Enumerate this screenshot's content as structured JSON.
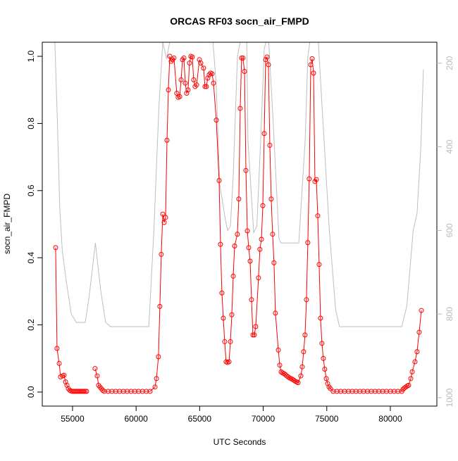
{
  "chart_data": {
    "type": "line",
    "title": "ORCAS RF03 socn_air_FMPD",
    "x_label": "UTC Seconds",
    "y_label": "socn_air_FMPD",
    "xlim": [
      52620,
      83660
    ],
    "xticks": [
      55000,
      60000,
      65000,
      70000,
      75000,
      80000
    ],
    "ylim": [
      -0.042,
      1.042
    ],
    "yticks": [
      {
        "value": 0,
        "label": "0.0"
      },
      0.2,
      0.4,
      0.6,
      0.8,
      {
        "value": 1,
        "label": "1.0"
      }
    ],
    "y2lim": [
      1020,
      150
    ],
    "y2ticks": [
      200,
      400,
      600,
      800,
      1000
    ],
    "series": [
      {
        "color": "#ff0000",
        "markers": true,
        "x": [
          53670,
          53780,
          53950,
          54060,
          54220,
          54330,
          54450,
          54560,
          54670,
          54780,
          54890,
          55000,
          55110,
          55220,
          55330,
          55440,
          55550,
          55670,
          55780,
          55890,
          56000,
          56110,
          56400,
          56770,
          56940,
          57050,
          57160,
          57270,
          57380,
          57500,
          57800,
          58100,
          58400,
          58700,
          59000,
          59300,
          59600,
          59900,
          60200,
          60500,
          60800,
          61100,
          61490,
          61600,
          61760,
          61870,
          61980,
          62100,
          62210,
          62320,
          62430,
          62540,
          62650,
          62760,
          62870,
          62980,
          63200,
          63310,
          63430,
          63540,
          63650,
          63760,
          63870,
          63980,
          64090,
          64200,
          64310,
          64420,
          64530,
          64640,
          64760,
          64980,
          65090,
          65310,
          65420,
          65530,
          65640,
          65750,
          65860,
          65980,
          66090,
          66310,
          66530,
          66640,
          66750,
          66860,
          66970,
          67080,
          67190,
          67310,
          67420,
          67530,
          67640,
          67750,
          67970,
          68080,
          68190,
          68300,
          68410,
          68530,
          68640,
          68750,
          68860,
          68970,
          69080,
          69190,
          69300,
          69410,
          69630,
          69740,
          69860,
          69970,
          70080,
          70190,
          70300,
          70410,
          70520,
          70630,
          70740,
          70850,
          70960,
          71190,
          71300,
          71410,
          71520,
          71630,
          71740,
          71850,
          71960,
          72070,
          72180,
          72290,
          72410,
          72520,
          72630,
          72740,
          72960,
          73070,
          73180,
          73290,
          73400,
          73510,
          73620,
          73740,
          73850,
          73960,
          74070,
          74180,
          74290,
          74400,
          74510,
          74620,
          74730,
          74840,
          74960,
          75070,
          75180,
          75290,
          75500,
          75800,
          76100,
          76400,
          76700,
          77000,
          77300,
          77600,
          77900,
          78200,
          78500,
          78800,
          79100,
          79400,
          79700,
          80000,
          80300,
          80600,
          80900,
          81000,
          81110,
          81220,
          81330,
          81440,
          81610,
          81720,
          81940,
          82100,
          82270,
          82440
        ],
        "values": [
          0.43,
          0.13,
          0.085,
          0.045,
          0.048,
          0.05,
          0.03,
          0.02,
          0.01,
          0.005,
          0.003,
          0.002,
          0.002,
          0.002,
          0.002,
          0.002,
          0.002,
          0.002,
          0.002,
          0.002,
          0.002,
          0.002,
          null,
          0.07,
          0.048,
          0.02,
          0.015,
          0.01,
          0.005,
          0.002,
          0.002,
          0.002,
          0.002,
          0.002,
          0.002,
          0.002,
          0.002,
          0.002,
          0.002,
          0.002,
          0.002,
          0.002,
          0.015,
          0.04,
          0.105,
          0.255,
          0.41,
          0.53,
          0.505,
          0.52,
          0.75,
          0.9,
          1.0,
          0.985,
          0.99,
          0.995,
          0.89,
          0.878,
          0.88,
          0.93,
          0.99,
          0.995,
          0.92,
          0.89,
          0.9,
          0.98,
          1.0,
          0.998,
          0.93,
          0.91,
          0.915,
          0.99,
          0.98,
          0.965,
          0.91,
          0.91,
          0.935,
          0.945,
          0.95,
          0.948,
          0.92,
          0.81,
          0.63,
          0.44,
          0.295,
          0.22,
          0.15,
          0.09,
          0.088,
          0.09,
          0.15,
          0.23,
          0.345,
          0.435,
          0.47,
          0.575,
          0.845,
          0.995,
          0.995,
          0.955,
          0.66,
          0.48,
          0.43,
          0.39,
          0.275,
          0.17,
          0.17,
          0.195,
          0.34,
          0.425,
          0.455,
          0.555,
          0.77,
          0.99,
          0.998,
          0.975,
          0.735,
          0.575,
          0.47,
          0.385,
          0.235,
          0.125,
          0.08,
          0.06,
          0.057,
          0.055,
          0.052,
          0.048,
          0.045,
          0.042,
          0.04,
          0.038,
          0.035,
          0.032,
          0.03,
          0.028,
          0.048,
          0.075,
          0.12,
          0.17,
          0.275,
          0.445,
          0.635,
          0.975,
          0.993,
          0.95,
          0.627,
          0.633,
          0.525,
          0.38,
          0.22,
          0.145,
          0.1,
          0.068,
          0.04,
          0.025,
          0.015,
          0.01,
          0.002,
          0.002,
          0.002,
          0.002,
          0.002,
          0.002,
          0.002,
          0.002,
          0.002,
          0.002,
          0.002,
          0.002,
          0.002,
          0.002,
          0.002,
          0.002,
          0.002,
          0.002,
          0.002,
          0.008,
          0.012,
          0.015,
          0.018,
          0.02,
          0.04,
          0.06,
          0.09,
          0.12,
          0.178,
          0.243
        ]
      },
      {
        "color": "#bebebe",
        "axis": "y2",
        "markers": false,
        "x": [
          53600,
          53800,
          54000,
          54200,
          54500,
          54900,
          55300,
          56000,
          56300,
          56800,
          57200,
          57600,
          58000,
          61000,
          61400,
          61800,
          62100,
          62400,
          62700,
          63000,
          63500,
          64000,
          64500,
          65000,
          65500,
          66000,
          66300,
          66580,
          67030,
          67200,
          67420,
          67640,
          67970,
          68300,
          68700,
          68800,
          69250,
          69500,
          69800,
          70080,
          70400,
          70800,
          71240,
          71400,
          72800,
          73300,
          73510,
          73800,
          74300,
          74700,
          75200,
          75700,
          76000,
          80900,
          81300,
          81800,
          82100,
          82400,
          82600
        ],
        "values": [
          140,
          330,
          550,
          650,
          720,
          800,
          820,
          820,
          760,
          630,
          740,
          820,
          830,
          830,
          600,
          300,
          150,
          190,
          140,
          120,
          130,
          140,
          120,
          150,
          130,
          130,
          250,
          490,
          575,
          600,
          590,
          470,
          185,
          130,
          140,
          385,
          605,
          590,
          385,
          165,
          130,
          350,
          620,
          630,
          630,
          385,
          185,
          120,
          130,
          340,
          600,
          790,
          830,
          830,
          780,
          600,
          560,
          400,
          215
        ]
      }
    ]
  }
}
